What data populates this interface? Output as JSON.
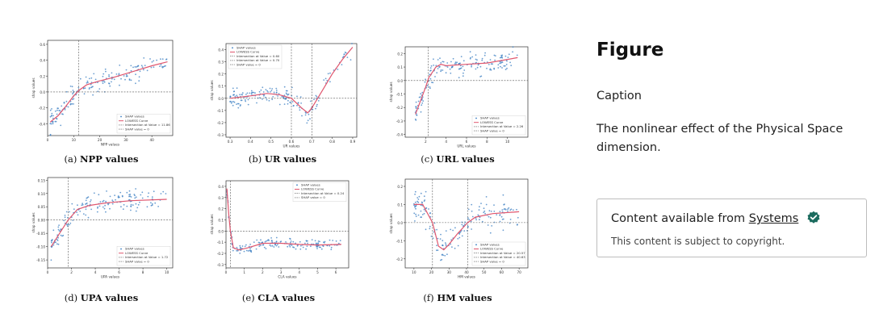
{
  "sidebar": {
    "figure_label": "Figure",
    "caption_label": "Caption",
    "caption_text": "The nonlinear effect of the Physical Space dimension.",
    "source_prefix": "Content available from",
    "source_link": "Systems",
    "copyright": "This content is subject to copyright.",
    "verified_icon": "verified-check-icon",
    "badge_color": "#1b6b5e"
  },
  "colors": {
    "points": "#3a7dc2",
    "curve": "#e0566e",
    "zero": "#555555",
    "intersect": "#555555"
  },
  "chart_data": [
    {
      "type": "scatter",
      "caption_letter": "(a)",
      "caption_name": "NPP values",
      "xlabel": "NPP values",
      "ylabel": "shap values",
      "xlim": [
        0,
        48
      ],
      "ylim": [
        -0.55,
        0.65
      ],
      "xticks": [
        0,
        10,
        20,
        30,
        40
      ],
      "yticks": [
        -0.4,
        -0.2,
        0.0,
        0.2,
        0.4,
        0.6
      ],
      "ytick_labels": [
        "-0.4",
        "-0.2",
        "0.0",
        "0.2",
        "0.4",
        "0.6"
      ],
      "intersections": [
        11.86
      ],
      "curve": [
        [
          1,
          -0.38
        ],
        [
          4,
          -0.3
        ],
        [
          7,
          -0.18
        ],
        [
          10,
          -0.05
        ],
        [
          12,
          0.02
        ],
        [
          15,
          0.09
        ],
        [
          20,
          0.14
        ],
        [
          25,
          0.18
        ],
        [
          30,
          0.23
        ],
        [
          35,
          0.28
        ],
        [
          40,
          0.33
        ],
        [
          46,
          0.38
        ]
      ],
      "scatter_seed": 11,
      "noise": 0.09,
      "legend": [
        "SHAP values",
        "LOWESS Curve",
        "Intersection at Value = 11.86",
        "SHAP value = 0"
      ],
      "legend_pos": "bottom-right"
    },
    {
      "type": "scatter",
      "caption_letter": "(b)",
      "caption_name": "UR values",
      "xlabel": "UR values",
      "ylabel": "shap values",
      "xlim": [
        0.28,
        0.92
      ],
      "ylim": [
        -0.32,
        0.45
      ],
      "xticks": [
        0.3,
        0.4,
        0.5,
        0.6,
        0.7,
        0.8,
        0.9
      ],
      "yticks": [
        -0.3,
        -0.2,
        -0.1,
        0.0,
        0.1,
        0.2,
        0.3,
        0.4
      ],
      "ytick_labels": [
        "-0.3",
        "-0.2",
        "-0.1",
        "0.0",
        "0.1",
        "0.2",
        "0.3",
        "0.4"
      ],
      "intersections": [
        0.6,
        0.7
      ],
      "curve": [
        [
          0.3,
          0.0
        ],
        [
          0.4,
          0.02
        ],
        [
          0.48,
          0.04
        ],
        [
          0.54,
          0.03
        ],
        [
          0.6,
          0.0
        ],
        [
          0.65,
          -0.08
        ],
        [
          0.68,
          -0.12
        ],
        [
          0.7,
          -0.08
        ],
        [
          0.75,
          0.06
        ],
        [
          0.8,
          0.2
        ],
        [
          0.85,
          0.32
        ],
        [
          0.9,
          0.42
        ]
      ],
      "scatter_seed": 23,
      "noise": 0.05,
      "legend": [
        "SHAP values",
        "LOWESS Curve",
        "Intersection at Value = 0.60",
        "Intersection at Value = 0.70",
        "SHAP value = 0"
      ],
      "legend_pos": "top-left"
    },
    {
      "type": "scatter",
      "caption_letter": "(c)",
      "caption_name": "URL values",
      "xlabel": "URL values",
      "ylabel": "shap values",
      "xlim": [
        0,
        12
      ],
      "ylim": [
        -0.42,
        0.25
      ],
      "xticks": [
        2,
        4,
        6,
        8,
        10
      ],
      "yticks": [
        -0.4,
        -0.3,
        -0.2,
        -0.1,
        0.0,
        0.1,
        0.2
      ],
      "ytick_labels": [
        "-0.4",
        "-0.3",
        "-0.2",
        "-0.1",
        "0.0",
        "0.1",
        "0.2"
      ],
      "intersections": [
        2.26
      ],
      "curve": [
        [
          1,
          -0.25
        ],
        [
          1.5,
          -0.15
        ],
        [
          2,
          -0.05
        ],
        [
          2.3,
          0.02
        ],
        [
          3,
          0.1
        ],
        [
          3.5,
          0.12
        ],
        [
          4,
          0.11
        ],
        [
          6,
          0.12
        ],
        [
          8,
          0.13
        ],
        [
          11,
          0.17
        ]
      ],
      "scatter_seed": 37,
      "noise": 0.05,
      "legend": [
        "SHAP values",
        "LOWESS Curve",
        "Intersection at Value = 2.26",
        "SHAP value = 0"
      ],
      "legend_pos": "bottom-right"
    },
    {
      "type": "scatter",
      "caption_letter": "(d)",
      "caption_name": "UPA values",
      "xlabel": "UPA values",
      "ylabel": "shap values",
      "xlim": [
        0,
        10.5
      ],
      "ylim": [
        -0.18,
        0.16
      ],
      "xticks": [
        0,
        2,
        4,
        6,
        8,
        10
      ],
      "yticks": [
        -0.15,
        -0.1,
        -0.05,
        0.0,
        0.05,
        0.1,
        0.15
      ],
      "ytick_labels": [
        "-0.15",
        "-0.10",
        "-0.05",
        "0.00",
        "0.05",
        "0.10",
        "0.15"
      ],
      "intersections": [
        1.72
      ],
      "curve": [
        [
          0.3,
          -0.1
        ],
        [
          1,
          -0.05
        ],
        [
          1.72,
          0.0
        ],
        [
          2.5,
          0.04
        ],
        [
          3.5,
          0.055
        ],
        [
          5,
          0.065
        ],
        [
          7,
          0.073
        ],
        [
          10,
          0.078
        ]
      ],
      "scatter_seed": 41,
      "noise": 0.025,
      "legend": [
        "SHAP values",
        "LOWESS Curve",
        "Intersection at Value = 1.72",
        "SHAP value = 0"
      ],
      "legend_pos": "bottom-right"
    },
    {
      "type": "scatter",
      "caption_letter": "(e)",
      "caption_name": "CLA values",
      "xlabel": "CLA values",
      "ylabel": "shap values",
      "xlim": [
        0,
        6.7
      ],
      "ylim": [
        -0.33,
        0.45
      ],
      "xticks": [
        0,
        1,
        2,
        3,
        4,
        5,
        6
      ],
      "yticks": [
        -0.3,
        -0.2,
        -0.1,
        0.0,
        0.1,
        0.2,
        0.3,
        0.4
      ],
      "ytick_labels": [
        "-0.3",
        "-0.2",
        "-0.1",
        "0.0",
        "0.1",
        "0.2",
        "0.3",
        "0.4"
      ],
      "intersections": [
        0.24
      ],
      "curve": [
        [
          0.05,
          0.38
        ],
        [
          0.15,
          0.15
        ],
        [
          0.24,
          0.0
        ],
        [
          0.4,
          -0.15
        ],
        [
          0.7,
          -0.17
        ],
        [
          1.2,
          -0.15
        ],
        [
          2,
          -0.11
        ],
        [
          3,
          -0.11
        ],
        [
          4,
          -0.12
        ],
        [
          5,
          -0.125
        ],
        [
          6.3,
          -0.12
        ]
      ],
      "scatter_seed": 53,
      "noise": 0.03,
      "legend": [
        "SHAP values",
        "LOWESS Curve",
        "Intersection at Value = 0.24",
        "SHAP value = 0"
      ],
      "legend_pos": "top-right"
    },
    {
      "type": "scatter",
      "caption_letter": "(f)",
      "caption_name": "HM values",
      "xlabel": "HM values",
      "ylabel": "shap values",
      "xlim": [
        5,
        75
      ],
      "ylim": [
        -0.25,
        0.24
      ],
      "xticks": [
        10,
        20,
        30,
        40,
        50,
        60,
        70
      ],
      "yticks": [
        -0.2,
        -0.1,
        0.0,
        0.1,
        0.2
      ],
      "ytick_labels": [
        "-0.2",
        "-0.1",
        "0.0",
        "0.1",
        "0.2"
      ],
      "intersections": [
        20.57,
        40.63
      ],
      "curve": [
        [
          10,
          0.1
        ],
        [
          15,
          0.1
        ],
        [
          20.57,
          0.0
        ],
        [
          24,
          -0.13
        ],
        [
          27,
          -0.15
        ],
        [
          30,
          -0.12
        ],
        [
          35,
          -0.06
        ],
        [
          40.63,
          0.0
        ],
        [
          45,
          0.03
        ],
        [
          55,
          0.05
        ],
        [
          70,
          0.06
        ]
      ],
      "scatter_seed": 67,
      "noise": 0.05,
      "legend": [
        "SHAP values",
        "LOWESS Curve",
        "Intersection at Value = 20.57",
        "Intersection at Value = 40.63",
        "SHAP value = 0"
      ],
      "legend_pos": "bottom-right"
    }
  ]
}
